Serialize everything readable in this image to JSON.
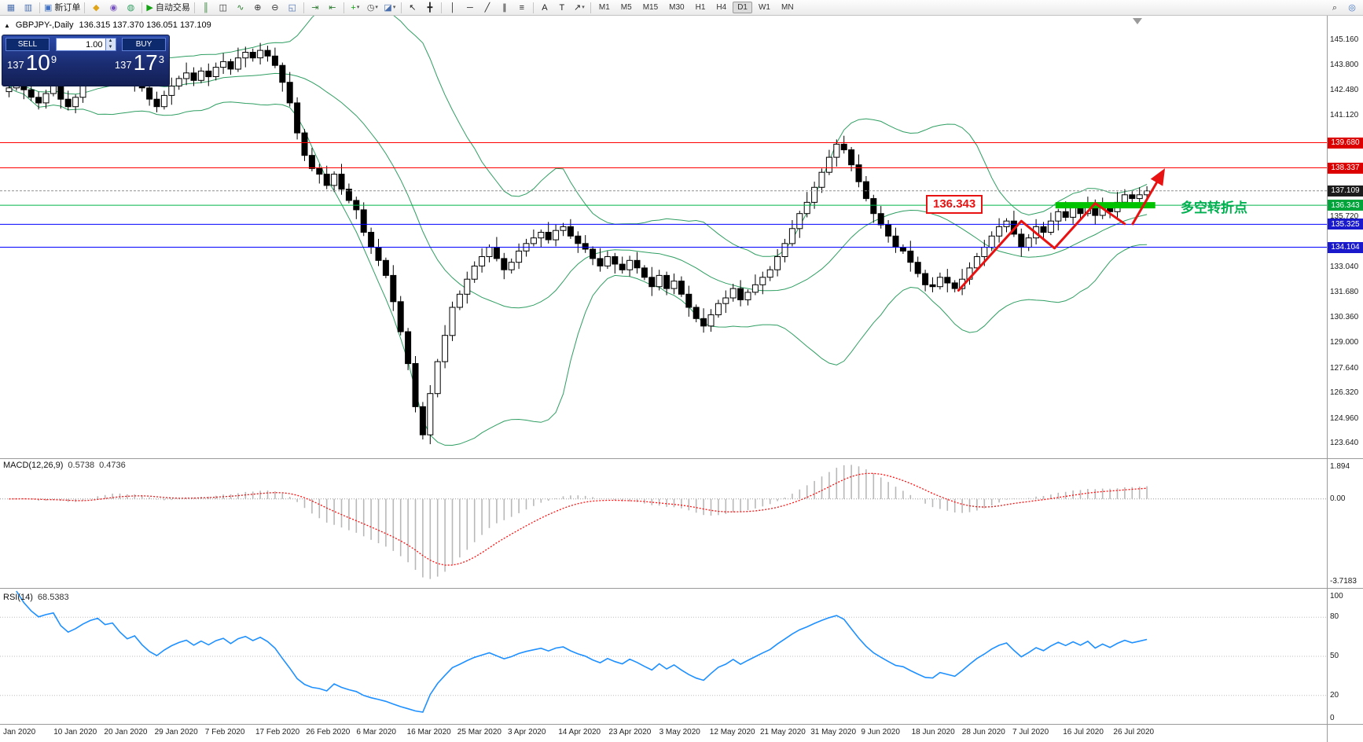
{
  "toolbar": {
    "items": [
      {
        "name": "new-chart-icon",
        "glyph": "▦",
        "color": "#4a6fae"
      },
      {
        "name": "profiles-icon",
        "glyph": "▥",
        "color": "#4a6fae"
      },
      {
        "sep": true
      },
      {
        "name": "new-order-icon",
        "glyph": "▣",
        "color": "#3f71c4",
        "label": "新订单"
      },
      {
        "sep": true
      },
      {
        "name": "mql-wizard-icon",
        "glyph": "◆",
        "color": "#e0a418"
      },
      {
        "name": "expert-advisors-icon",
        "glyph": "◉",
        "color": "#7a56c2"
      },
      {
        "name": "market-icon",
        "glyph": "◍",
        "color": "#2e9e60"
      },
      {
        "sep": true
      },
      {
        "name": "autotrading-icon",
        "glyph": "▶",
        "color": "#15a315",
        "label": "自动交易"
      },
      {
        "sep": true
      },
      {
        "name": "bar-chart-icon",
        "glyph": "║",
        "color": "#2e7d32"
      },
      {
        "name": "candlestick-icon",
        "glyph": "◫",
        "color": "#333333"
      },
      {
        "name": "line-chart-icon",
        "glyph": "∿",
        "color": "#2e7d32"
      },
      {
        "name": "zoom-in-icon",
        "glyph": "⊕",
        "color": "#333333"
      },
      {
        "name": "zoom-out-icon",
        "glyph": "⊖",
        "color": "#333333"
      },
      {
        "name": "tile-windows-icon",
        "glyph": "◱",
        "color": "#4a6fae"
      },
      {
        "sep": true
      },
      {
        "name": "autoscroll-icon",
        "glyph": "⇥",
        "color": "#2e7d32"
      },
      {
        "name": "chart-shift-icon",
        "glyph": "⇤",
        "color": "#2e7d32"
      },
      {
        "sep": true
      },
      {
        "name": "indicators-icon",
        "glyph": "+",
        "color": "#15a315",
        "caret": true
      },
      {
        "name": "periods-icon",
        "glyph": "◷",
        "color": "#444444",
        "caret": true
      },
      {
        "name": "templates-icon",
        "glyph": "◪",
        "color": "#4a6fae",
        "caret": true
      },
      {
        "sep": true
      },
      {
        "name": "cursor-icon",
        "glyph": "↖",
        "color": "#222222"
      },
      {
        "name": "crosshair-icon",
        "glyph": "╋",
        "color": "#222222"
      },
      {
        "sep": true
      },
      {
        "name": "vline-icon",
        "glyph": "│",
        "color": "#222222"
      },
      {
        "name": "hline-icon",
        "glyph": "─",
        "color": "#222222"
      },
      {
        "name": "trendline-icon",
        "glyph": "╱",
        "color": "#222222"
      },
      {
        "name": "channel-icon",
        "glyph": "∥",
        "color": "#222222"
      },
      {
        "name": "fibonacci-icon",
        "glyph": "≡",
        "color": "#222222"
      },
      {
        "sep": true
      },
      {
        "name": "text-icon",
        "glyph": "A",
        "color": "#222222"
      },
      {
        "name": "label-icon",
        "glyph": "T",
        "color": "#222222"
      },
      {
        "name": "shapes-icon",
        "glyph": "↗",
        "color": "#222222",
        "caret": true
      },
      {
        "sep": true
      }
    ],
    "timeframes": [
      "M1",
      "M5",
      "M15",
      "M30",
      "H1",
      "H4",
      "D1",
      "W1",
      "MN"
    ],
    "active_timeframe": "D1",
    "right_items": [
      {
        "name": "search-icon",
        "glyph": "⌕",
        "color": "#333333"
      },
      {
        "name": "community-icon",
        "glyph": "◎",
        "color": "#3f71c4"
      }
    ]
  },
  "symbol_header": {
    "collapse_glyph": "▲",
    "symbol": "GBPJPY-,Daily",
    "ohlc": "136.315 137.370 136.051 137.109"
  },
  "trade_panel": {
    "sell_label": "SELL",
    "buy_label": "BUY",
    "volume": "1.00",
    "sell_price": {
      "small": "137",
      "big": "10",
      "sup": "9"
    },
    "buy_price": {
      "small": "137",
      "big": "17",
      "sup": "3"
    }
  },
  "macd_panel": {
    "label": "MACD(12,26,9)",
    "value_main": "0.5738",
    "value_signal": "0.4736",
    "axis_top": "1.894",
    "axis_zero": "0.00",
    "axis_bottom": "-3.7183"
  },
  "rsi_panel": {
    "label": "RSI(14)",
    "value": "68.5383",
    "axis": [
      100,
      80,
      50,
      20,
      0
    ],
    "levels": [
      80,
      50,
      20
    ]
  },
  "annotations": {
    "price_flag": "136.343",
    "turning_point_text": "多空转折点",
    "flag_color": "#e81212",
    "text_color": "#00b050",
    "zigzag_points": [
      [
        128.5,
        131.8
      ],
      [
        137,
        135.5
      ],
      [
        141.5,
        134.05
      ],
      [
        147,
        136.45
      ],
      [
        151,
        135.35
      ]
    ],
    "arrow": [
      [
        152,
        135.3
      ],
      [
        156.2,
        138.15
      ]
    ],
    "green_bar": {
      "from_bar": 142,
      "to_bar": 155.5,
      "price": 136.343,
      "color": "#00c300"
    }
  },
  "chart_data": {
    "type": "candlestick",
    "symbol": "GBPJPY-",
    "timeframe": "Daily",
    "x_labels": [
      "Jan 2020",
      "10 Jan 2020",
      "20 Jan 2020",
      "29 Jan 2020",
      "7 Feb 2020",
      "17 Feb 2020",
      "26 Feb 2020",
      "6 Mar 2020",
      "16 Mar 2020",
      "25 Mar 2020",
      "3 Apr 2020",
      "14 Apr 2020",
      "23 Apr 2020",
      "3 May 2020",
      "12 May 2020",
      "21 May 2020",
      "31 May 2020",
      "9 Jun 2020",
      "18 Jun 2020",
      "28 Jun 2020",
      "7 Jul 2020",
      "16 Jul 2020",
      "26 Jul 2020"
    ],
    "first_open": 142.4,
    "closes": [
      142.6,
      143.0,
      142.5,
      142.1,
      141.8,
      142.3,
      142.7,
      142.0,
      141.6,
      142.1,
      142.9,
      143.6,
      144.1,
      143.7,
      144.0,
      143.4,
      142.9,
      143.3,
      142.6,
      142.0,
      141.6,
      142.2,
      142.7,
      143.1,
      143.4,
      143.0,
      143.5,
      143.2,
      143.7,
      144.0,
      143.6,
      144.2,
      144.5,
      144.2,
      144.6,
      144.3,
      143.8,
      142.9,
      141.8,
      140.2,
      139.0,
      138.3,
      138.0,
      137.4,
      138.0,
      137.2,
      136.6,
      136.1,
      134.9,
      134.1,
      133.4,
      132.6,
      131.2,
      129.6,
      127.9,
      125.6,
      124.1,
      126.3,
      128.0,
      129.4,
      130.9,
      131.6,
      132.4,
      133.1,
      133.6,
      134.1,
      133.5,
      132.9,
      133.3,
      133.9,
      134.3,
      134.6,
      134.9,
      134.5,
      135.0,
      135.2,
      134.7,
      134.3,
      134.0,
      133.5,
      133.1,
      133.6,
      133.2,
      132.9,
      133.4,
      133.0,
      132.5,
      132.0,
      132.6,
      131.9,
      132.3,
      131.6,
      130.9,
      130.3,
      129.9,
      130.5,
      131.1,
      131.4,
      131.9,
      131.3,
      131.7,
      132.1,
      132.5,
      132.9,
      133.6,
      134.3,
      135.1,
      135.9,
      136.5,
      137.3,
      138.1,
      138.9,
      139.6,
      139.3,
      138.5,
      137.6,
      136.7,
      135.9,
      135.3,
      134.7,
      134.1,
      133.9,
      133.3,
      132.7,
      132.1,
      132.0,
      132.5,
      132.2,
      131.9,
      132.4,
      133.0,
      133.6,
      134.1,
      134.7,
      135.2,
      135.5,
      134.8,
      134.1,
      134.6,
      135.2,
      134.9,
      135.5,
      136.0,
      135.7,
      136.2,
      135.9,
      136.4,
      135.8,
      136.3,
      136.0,
      136.5,
      136.9,
      136.7,
      136.9,
      137.109
    ],
    "wick_up": [
      0.25,
      0.45,
      0.15,
      0.55,
      0.3,
      0.2,
      0.4
    ],
    "wick_down": [
      0.3,
      0.15,
      0.5,
      0.2,
      0.35
    ],
    "low_override": {
      "index": 56,
      "low": 123.85
    },
    "y_domain": [
      122.85,
      146.45
    ],
    "indicators": {
      "bollinger": {
        "period": 20,
        "deviation": 2,
        "color": "#2f9e62"
      },
      "macd": {
        "fast": 12,
        "slow": 26,
        "signal": 9,
        "histogram_color": "#b8b8b8",
        "signal_color": "#ff1010"
      },
      "rsi": {
        "period": 14,
        "color": "#1E90FF"
      }
    },
    "levels": [
      {
        "price": 139.68,
        "color": "#ff0000",
        "dash": false
      },
      {
        "price": 138.337,
        "color": "#ff0000",
        "dash": false
      },
      {
        "price": 136.343,
        "color": "#00b44a",
        "dash": false
      },
      {
        "price": 135.325,
        "color": "#0000ff",
        "dash": false
      },
      {
        "price": 134.104,
        "color": "#0000ff",
        "dash": false
      },
      {
        "price": 137.109,
        "color": "#909090",
        "dash": true
      }
    ],
    "price_tags": [
      {
        "price": 139.68,
        "color": "#dd0000"
      },
      {
        "price": 138.337,
        "color": "#dd0000"
      },
      {
        "price": 137.109,
        "color": "#1c1c1c"
      },
      {
        "price": 136.343,
        "color": "#00a43a"
      },
      {
        "price": 135.325,
        "color": "#1a1acc"
      },
      {
        "price": 134.104,
        "color": "#1a1acc"
      }
    ],
    "plain_price_labels": [
      145.16,
      143.8,
      142.48,
      141.12,
      135.72,
      133.04,
      131.68,
      130.36,
      129.0,
      127.64,
      126.32,
      124.96,
      123.64
    ]
  }
}
